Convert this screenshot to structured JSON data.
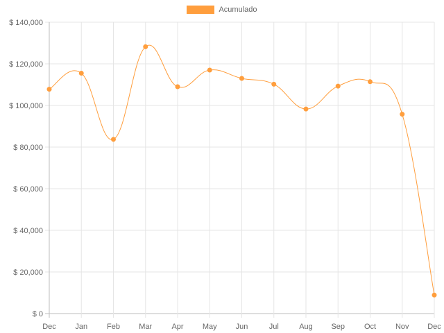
{
  "chart_data": {
    "type": "line",
    "categories": [
      "Dec",
      "Jan",
      "Feb",
      "Mar",
      "Apr",
      "May",
      "Jun",
      "Jul",
      "Aug",
      "Sep",
      "Oct",
      "Nov",
      "Dec"
    ],
    "series": [
      {
        "name": "Acumulado",
        "values": [
          107800,
          115500,
          83700,
          128200,
          109000,
          117000,
          113000,
          110200,
          98300,
          109300,
          111400,
          95800,
          8900
        ],
        "color": "#ff9e3d"
      }
    ],
    "ylim": [
      0,
      140000
    ],
    "yticks": [
      0,
      20000,
      40000,
      60000,
      80000,
      100000,
      120000,
      140000
    ],
    "ytick_labels": [
      "$ 0",
      "$ 20,000",
      "$ 40,000",
      "$ 60,000",
      "$ 80,000",
      "$ 100,000",
      "$ 120,000",
      "$ 140,000"
    ],
    "legend_position": "top-center",
    "grid": true,
    "title": "",
    "xlabel": "",
    "ylabel": ""
  },
  "colors": {
    "series": "#ff9e3d",
    "grid": "#e5e5e5",
    "text": "#666666"
  }
}
